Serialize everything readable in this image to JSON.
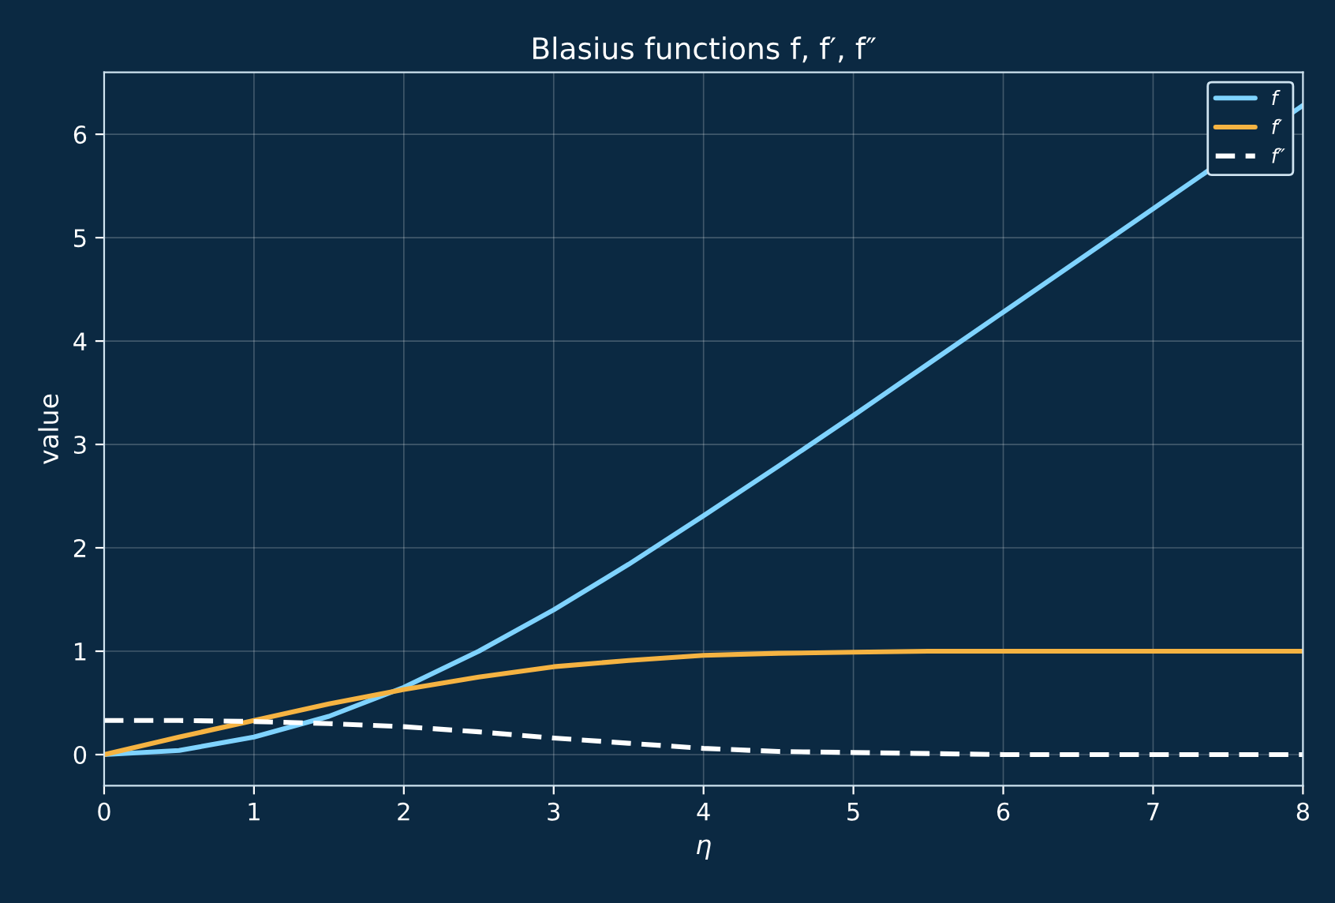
{
  "chart_data": {
    "type": "line",
    "title": "Blasius functions f, f′, f″",
    "xlabel": "η",
    "ylabel": "value",
    "x": [
      0,
      0.5,
      1,
      1.5,
      2,
      2.5,
      3,
      3.5,
      4,
      4.5,
      5,
      5.5,
      6,
      6.5,
      7,
      7.5,
      8
    ],
    "series": [
      {
        "name": "f",
        "color": "#7fd3ff",
        "line_style": "solid",
        "values": [
          0,
          0.04,
          0.17,
          0.37,
          0.65,
          1.0,
          1.4,
          1.84,
          2.31,
          2.79,
          3.28,
          3.78,
          4.28,
          4.78,
          5.28,
          null,
          6.28
        ]
      },
      {
        "name": "f′",
        "color": "#f5b342",
        "line_style": "solid",
        "values": [
          0,
          0.17,
          0.33,
          0.49,
          0.63,
          0.75,
          0.85,
          0.91,
          0.96,
          0.98,
          0.99,
          1.0,
          1.0,
          1.0,
          1.0,
          1.0,
          1.0
        ]
      },
      {
        "name": "f″",
        "color": "#ffffff",
        "line_style": "dashed",
        "values": [
          0.33,
          0.33,
          0.32,
          0.3,
          0.27,
          0.22,
          0.16,
          0.11,
          0.06,
          0.03,
          0.02,
          0.01,
          0.0,
          0.0,
          0.0,
          0.0,
          0.0
        ]
      }
    ],
    "xlim": [
      0,
      8
    ],
    "ylim": [
      -0.3,
      6.6
    ],
    "xticks": [
      0,
      1,
      2,
      3,
      4,
      5,
      6,
      7,
      8
    ],
    "yticks": [
      0,
      1,
      2,
      3,
      4,
      5,
      6
    ],
    "grid": true,
    "legend": "top right",
    "marker": "none"
  }
}
